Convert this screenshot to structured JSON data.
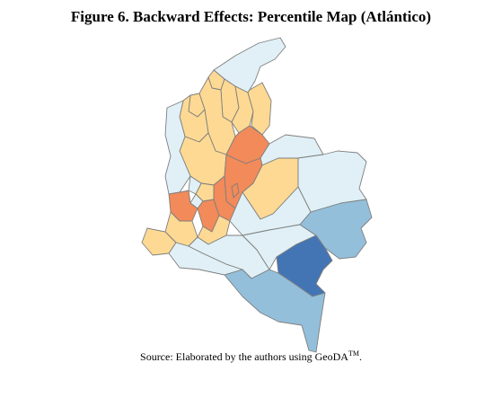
{
  "title": "Figure 6. Backward Effects: Percentile Map (Atlántico)",
  "source": {
    "text": "Source: Elaborated by the authors using GeoDA",
    "superscript": "TM",
    "suffix": "."
  },
  "colors": {
    "very_light_blue": "#e0f0f6",
    "light_orange": "#fdd993",
    "orange": "#f28a5a",
    "medium_blue": "#93bfdb",
    "dark_blue": "#4375b5",
    "border": "#7f7f7f"
  },
  "map": {
    "type": "choropleth",
    "regions": [
      {
        "id": "guajira",
        "class": "very_light_blue"
      },
      {
        "id": "atlantico",
        "class": "light_orange"
      },
      {
        "id": "magdalena",
        "class": "light_orange"
      },
      {
        "id": "cesar",
        "class": "light_orange"
      },
      {
        "id": "bolivar",
        "class": "light_orange"
      },
      {
        "id": "sucre",
        "class": "light_orange"
      },
      {
        "id": "cordoba",
        "class": "light_orange"
      },
      {
        "id": "norte-santander",
        "class": "light_orange"
      },
      {
        "id": "santander",
        "class": "orange"
      },
      {
        "id": "antioquia",
        "class": "light_orange"
      },
      {
        "id": "choco",
        "class": "very_light_blue"
      },
      {
        "id": "arauca",
        "class": "very_light_blue"
      },
      {
        "id": "boyaca",
        "class": "orange"
      },
      {
        "id": "cundinamarca",
        "class": "orange"
      },
      {
        "id": "bogota",
        "class": "orange"
      },
      {
        "id": "caldas",
        "class": "light_orange"
      },
      {
        "id": "risaralda",
        "class": "very_light_blue"
      },
      {
        "id": "quindio",
        "class": "very_light_blue"
      },
      {
        "id": "tolima",
        "class": "orange"
      },
      {
        "id": "valle",
        "class": "orange"
      },
      {
        "id": "casanare",
        "class": "light_orange"
      },
      {
        "id": "vichada",
        "class": "very_light_blue"
      },
      {
        "id": "meta",
        "class": "very_light_blue"
      },
      {
        "id": "huila",
        "class": "light_orange"
      },
      {
        "id": "cauca",
        "class": "light_orange"
      },
      {
        "id": "narino",
        "class": "light_orange"
      },
      {
        "id": "putumayo",
        "class": "very_light_blue"
      },
      {
        "id": "caqueta",
        "class": "very_light_blue"
      },
      {
        "id": "guaviare",
        "class": "very_light_blue"
      },
      {
        "id": "guainia",
        "class": "medium_blue"
      },
      {
        "id": "vaupes",
        "class": "dark_blue"
      },
      {
        "id": "amazonas",
        "class": "medium_blue"
      }
    ]
  }
}
